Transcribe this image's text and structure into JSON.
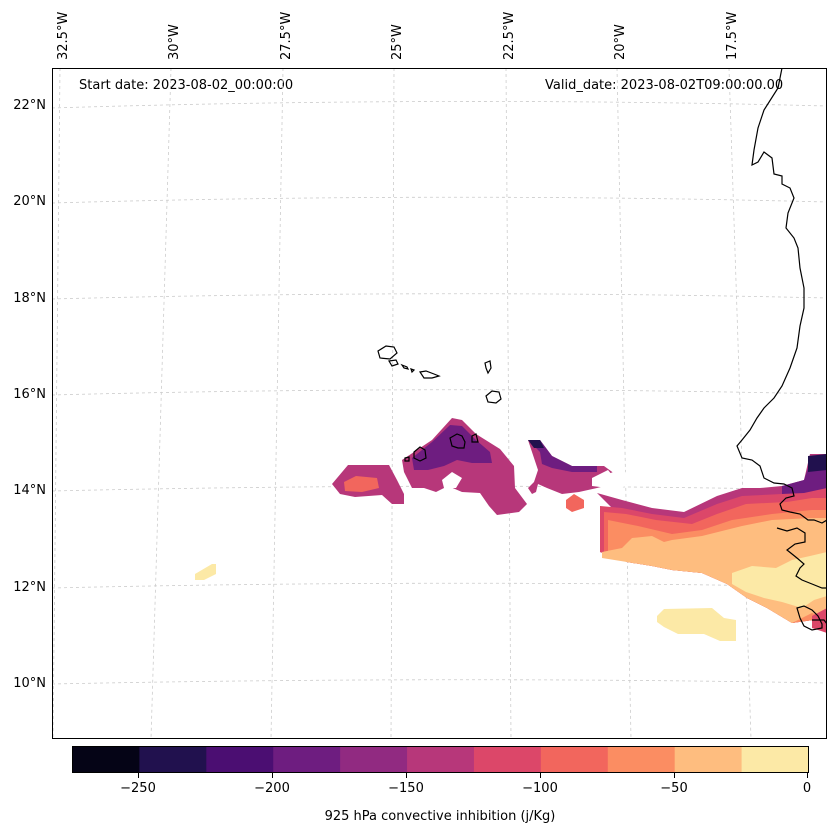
{
  "header": {
    "start_date": "Start date: 2023-08-02_00:00:00",
    "valid_date": "Valid_date: 2023-08-02T09:00:00.00"
  },
  "axes": {
    "longitude_labels": [
      "32.5°W",
      "30°W",
      "27.5°W",
      "25°W",
      "22.5°W",
      "20°W",
      "17.5°W"
    ],
    "latitude_labels": [
      "22°N",
      "20°N",
      "18°N",
      "16°N",
      "14°N",
      "12°N",
      "10°N"
    ]
  },
  "colorbar": {
    "title": "925 hPa convective inhibition (j/Kg)",
    "tick_labels": [
      "−250",
      "−200",
      "−150",
      "−100",
      "−50",
      "0"
    ],
    "levels": [
      -275,
      -250,
      -225,
      -200,
      -175,
      -150,
      -125,
      -100,
      -75,
      -50,
      -25,
      0
    ],
    "colors": [
      "#050416",
      "#21114e",
      "#4b0e72",
      "#6e1d80",
      "#912a81",
      "#b7377a",
      "#dc4769",
      "#f2665d",
      "#fb8d62",
      "#febd7f",
      "#fce9a6"
    ]
  },
  "colors": {
    "coastline": "#000000",
    "gridline": "#cccccc"
  }
}
